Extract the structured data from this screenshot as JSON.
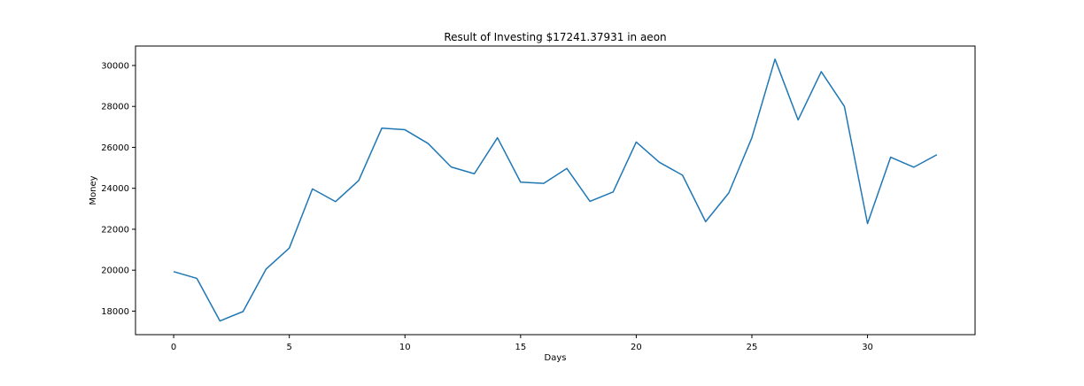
{
  "chart_data": {
    "type": "line",
    "title": "Result of Investing $17241.37931 in aeon",
    "xlabel": "Days",
    "ylabel": "Money",
    "xlim": [
      -1.65,
      34.65
    ],
    "ylim": [
      16850,
      30950
    ],
    "xticks": [
      0,
      5,
      10,
      15,
      20,
      25,
      30
    ],
    "yticks": [
      18000,
      20000,
      22000,
      24000,
      26000,
      28000,
      30000
    ],
    "grid": false,
    "legend": "none",
    "series": [
      {
        "color": "#1f77b4",
        "x": [
          0,
          1,
          2,
          3,
          4,
          5,
          6,
          7,
          8,
          9,
          10,
          11,
          12,
          13,
          14,
          15,
          16,
          17,
          18,
          19,
          20,
          21,
          22,
          23,
          24,
          25,
          26,
          27,
          28,
          29,
          30,
          31,
          32,
          33
        ],
        "values": [
          19930,
          19600,
          17520,
          17980,
          20060,
          21080,
          23970,
          23350,
          24380,
          26940,
          26860,
          26190,
          25040,
          24710,
          26470,
          24300,
          24240,
          24970,
          23360,
          23820,
          26260,
          25270,
          24640,
          22370,
          23770,
          26470,
          30310,
          27340,
          29700,
          28000,
          22280,
          25520,
          25030,
          25640
        ]
      }
    ]
  }
}
